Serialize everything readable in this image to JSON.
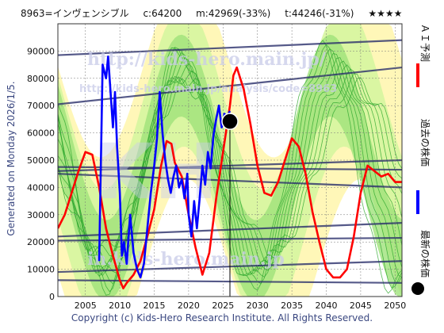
{
  "header": {
    "code": "8963=インヴェンシブル",
    "current": "c:64200",
    "min": "m:42969(-33%)",
    "target": "t:44246(-31%)",
    "stars": "★★★★"
  },
  "side_label": "Generated on Monday 2026/1/5.",
  "footer": "Copyright (c) Kids-Hero Research Institute. All Rights Reserved.",
  "watermarks": [
    "http://kids-hero.main.jp/",
    "http://kids-hero.main.jp/analysis/code=8963",
    "in.kids-hero.main.jp"
  ],
  "legend": [
    {
      "label": "ＡＩ予測",
      "color": "#ff0000",
      "kind": "line"
    },
    {
      "label": "過去の株価",
      "color": "#0000ff",
      "kind": "line"
    },
    {
      "label": "最新の株価",
      "color": "#000000",
      "kind": "dot"
    }
  ],
  "chart_data": {
    "type": "line",
    "x_ticks": [
      2005,
      2010,
      2015,
      2020,
      2025,
      2030,
      2035,
      2040,
      2045,
      2050
    ],
    "y_ticks": [
      0,
      10000,
      20000,
      30000,
      40000,
      50000,
      60000,
      70000,
      80000,
      90000
    ],
    "xlim": [
      2001,
      2051
    ],
    "ylim": [
      0,
      100000
    ],
    "grid": true,
    "legend_position": "right",
    "series": [
      {
        "name": "ＡＩ予測",
        "color": "#ff0000",
        "x": [
          2001,
          2002,
          2003,
          2004,
          2005,
          2006,
          2007,
          2008,
          2009,
          2010,
          2010.5,
          2011,
          2012,
          2013,
          2014,
          2015,
          2016,
          2016.8,
          2017.5,
          2018,
          2019,
          2020,
          2021,
          2022,
          2023,
          2024,
          2025,
          2026,
          2026.5,
          2027,
          2028,
          2029,
          2030,
          2031,
          2032,
          2033,
          2034,
          2035,
          2036,
          2037,
          2038,
          2039,
          2040,
          2041,
          2042,
          2043,
          2044,
          2045,
          2046,
          2047,
          2048,
          2049,
          2050,
          2051
        ],
        "y": [
          25000,
          30000,
          38000,
          46000,
          53000,
          52000,
          40000,
          25000,
          15000,
          6000,
          3000,
          5000,
          8000,
          13000,
          22000,
          32000,
          48000,
          57000,
          56000,
          49000,
          44000,
          30000,
          18000,
          8000,
          16000,
          36000,
          53000,
          70000,
          81000,
          84000,
          76000,
          63000,
          48000,
          38000,
          37000,
          42000,
          50000,
          58000,
          55000,
          45000,
          31000,
          20000,
          10000,
          7000,
          7000,
          10000,
          22000,
          38000,
          48000,
          46000,
          44000,
          45000,
          42000,
          42000
        ]
      },
      {
        "name": "過去の株価",
        "color": "#0000ff",
        "x": [
          2007,
          2007.5,
          2008,
          2008.3,
          2008.6,
          2009,
          2009.3,
          2009.6,
          2010,
          2010.3,
          2010.6,
          2011,
          2011.5,
          2012,
          2012.5,
          2013,
          2013.5,
          2014,
          2014.5,
          2015,
          2015.4,
          2015.8,
          2016.2,
          2016.6,
          2017,
          2017.4,
          2017.8,
          2018.2,
          2018.6,
          2019,
          2019.4,
          2019.8,
          2020,
          2020.4,
          2020.8,
          2021.2,
          2021.6,
          2022,
          2022.4,
          2022.8,
          2023.2,
          2023.6,
          2024,
          2024.4,
          2024.8,
          2025.2,
          2025.6,
          2026
        ],
        "y": [
          13000,
          85000,
          80000,
          88000,
          77000,
          62000,
          75000,
          55000,
          38000,
          15000,
          20000,
          12000,
          30000,
          16000,
          10000,
          7000,
          12000,
          25000,
          38000,
          48000,
          58000,
          75000,
          60000,
          50000,
          43000,
          38000,
          44000,
          48000,
          40000,
          43000,
          36000,
          45000,
          30000,
          22000,
          35000,
          25000,
          36000,
          48000,
          41000,
          53000,
          47000,
          59000,
          65000,
          70000,
          62000,
          67000,
          66000,
          68000
        ]
      }
    ],
    "latest_point": {
      "x": 2026,
      "y": 64200
    }
  }
}
